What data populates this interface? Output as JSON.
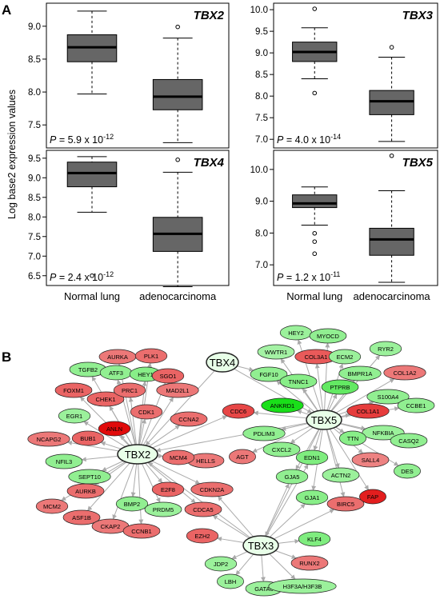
{
  "panel_letters": {
    "a": "A",
    "b": "B"
  },
  "ylabel": "Log base2 expression values",
  "xcategories": [
    "Normal lung",
    "adenocarcinoma"
  ],
  "colors": {
    "box": "#666666",
    "median": "#000000",
    "edge_red": "#e8000a",
    "edge_green": "#22dd22",
    "arrow": "#aaaaaa"
  },
  "chart_data": [
    {
      "type": "box",
      "title": "TBX2",
      "pvalue": "P = 5.9 x 10",
      "pexp": "-12",
      "ylim": [
        7.15,
        9.35
      ],
      "yticks": [
        "7.5",
        "8.0",
        "8.5",
        "9.0"
      ],
      "groups": [
        {
          "name": "Normal lung",
          "whisker_low": 7.97,
          "q1": 8.46,
          "median": 8.68,
          "q3": 8.87,
          "whisker_high": 9.23,
          "outliers": []
        },
        {
          "name": "adenocarcinoma",
          "whisker_low": 7.23,
          "q1": 7.73,
          "median": 7.93,
          "q3": 8.19,
          "whisker_high": 8.82,
          "outliers": [
            8.99
          ]
        }
      ]
    },
    {
      "type": "box",
      "title": "TBX3",
      "pvalue": "P = 4.0 x 10",
      "pexp": "-14",
      "ylim": [
        6.8,
        10.15
      ],
      "yticks": [
        "7.0",
        "7.5",
        "8.0",
        "8.5",
        "9.0",
        "9.5",
        "10.0"
      ],
      "groups": [
        {
          "name": "Normal lung",
          "whisker_low": 8.4,
          "q1": 8.8,
          "median": 9.02,
          "q3": 9.25,
          "whisker_high": 9.58,
          "outliers": [
            8.07,
            10.02
          ]
        },
        {
          "name": "adenocarcinoma",
          "whisker_low": 6.95,
          "q1": 7.57,
          "median": 7.88,
          "q3": 8.13,
          "whisker_high": 8.9,
          "outliers": [
            9.13
          ]
        }
      ]
    },
    {
      "type": "box",
      "title": "TBX4",
      "pvalue": "P = 2.4 x 10",
      "pexp": "-12",
      "ylim": [
        6.25,
        9.7
      ],
      "yticks": [
        "6.5",
        "7.0",
        "7.5",
        "8.0",
        "8.5",
        "9.0",
        "9.5"
      ],
      "groups": [
        {
          "name": "Normal lung",
          "whisker_low": 8.12,
          "q1": 8.77,
          "median": 9.12,
          "q3": 9.4,
          "whisker_high": 9.54,
          "outliers": [
            6.5
          ]
        },
        {
          "name": "adenocarcinoma",
          "whisker_low": 6.22,
          "q1": 7.12,
          "median": 7.57,
          "q3": 7.99,
          "whisker_high": 9.14,
          "outliers": [
            9.46
          ]
        }
      ]
    },
    {
      "type": "box",
      "title": "TBX5",
      "pvalue": "P = 1.2 x 10",
      "pexp": "-11",
      "ylim": [
        6.35,
        10.6
      ],
      "yticks": [
        "7.0",
        "8.0",
        "9.0",
        "10.0"
      ],
      "groups": [
        {
          "name": "Normal lung",
          "whisker_low": 8.25,
          "q1": 8.8,
          "median": 8.93,
          "q3": 9.2,
          "whisker_high": 9.45,
          "outliers": [
            7.35,
            7.73,
            7.99
          ]
        },
        {
          "name": "adenocarcinoma",
          "whisker_low": 6.45,
          "q1": 7.3,
          "median": 7.8,
          "q3": 8.15,
          "whisker_high": 9.33,
          "outliers": [
            10.43
          ]
        }
      ]
    }
  ],
  "network": {
    "hubs": [
      "TBX2",
      "TBX3",
      "TBX4",
      "TBX5"
    ],
    "nodes": [
      {
        "id": "TBX2",
        "level": 0.45
      },
      {
        "id": "TBX3",
        "level": 0.5
      },
      {
        "id": "TBX4",
        "level": 0.5
      },
      {
        "id": "TBX5",
        "level": 0.6
      },
      {
        "id": "AURKA",
        "level": -0.45
      },
      {
        "id": "PLK1",
        "level": -0.5
      },
      {
        "id": "TGFB2",
        "level": 0.35
      },
      {
        "id": "ATF3",
        "level": 0.35
      },
      {
        "id": "HEY1",
        "level": 0.4
      },
      {
        "id": "SGO1",
        "level": -0.55
      },
      {
        "id": "FOXM1",
        "level": -0.55
      },
      {
        "id": "CHEK1",
        "level": -0.55
      },
      {
        "id": "PRC1",
        "level": -0.5
      },
      {
        "id": "MAD2L1",
        "level": -0.45
      },
      {
        "id": "CDK1",
        "level": -0.5
      },
      {
        "id": "CCNA2",
        "level": -0.5
      },
      {
        "id": "EGR1",
        "level": 0.3
      },
      {
        "id": "ANLN",
        "level": -1.0
      },
      {
        "id": "NCAPG2",
        "level": -0.45
      },
      {
        "id": "BUB1",
        "level": -0.55
      },
      {
        "id": "NFIL3",
        "level": 0.35
      },
      {
        "id": "SEPT10",
        "level": 0.35
      },
      {
        "id": "AURKB",
        "level": -0.5
      },
      {
        "id": "MCM2",
        "level": -0.45
      },
      {
        "id": "ASF1B",
        "level": -0.5
      },
      {
        "id": "CKAP2",
        "level": -0.45
      },
      {
        "id": "BMP2",
        "level": 0.35
      },
      {
        "id": "CCNB1",
        "level": -0.5
      },
      {
        "id": "PRDM5",
        "level": 0.3
      },
      {
        "id": "E2F8",
        "level": -0.55
      },
      {
        "id": "CDCA5",
        "level": -0.5
      },
      {
        "id": "CDKN2A",
        "level": -0.5
      },
      {
        "id": "EZH2",
        "level": -0.55
      },
      {
        "id": "HELLS",
        "level": -0.45
      },
      {
        "id": "MCM4",
        "level": -0.5
      },
      {
        "id": "AGT",
        "level": -0.45
      },
      {
        "id": "CDC6",
        "level": -0.7
      },
      {
        "id": "FGF10",
        "level": 0.35
      },
      {
        "id": "PDLIM3",
        "level": 0.35
      },
      {
        "id": "HEY2",
        "level": 0.3
      },
      {
        "id": "MYOCD",
        "level": 0.35
      },
      {
        "id": "WWTR1",
        "level": 0.25
      },
      {
        "id": "COL3A1",
        "level": -0.6
      },
      {
        "id": "ECM2",
        "level": 0.3
      },
      {
        "id": "RYR2",
        "level": 0.3
      },
      {
        "id": "BMPR1A",
        "level": 0.35
      },
      {
        "id": "COL1A2",
        "level": -0.45
      },
      {
        "id": "TNNC1",
        "level": 0.4
      },
      {
        "id": "PTPRB",
        "level": 0.6
      },
      {
        "id": "S100A4",
        "level": 0.35
      },
      {
        "id": "ANKRD1",
        "level": 1.0
      },
      {
        "id": "COL1A1",
        "level": -0.75
      },
      {
        "id": "CCBE1",
        "level": 0.35
      },
      {
        "id": "NFKBIA",
        "level": 0.3
      },
      {
        "id": "TTN",
        "level": 0.4
      },
      {
        "id": "CASQ2",
        "level": 0.35
      },
      {
        "id": "CXCL2",
        "level": 0.35
      },
      {
        "id": "EDN1",
        "level": 0.45
      },
      {
        "id": "SALL4",
        "level": -0.4
      },
      {
        "id": "DES",
        "level": 0.35
      },
      {
        "id": "GJA5",
        "level": 0.35
      },
      {
        "id": "ACTN2",
        "level": 0.3
      },
      {
        "id": "GJA1",
        "level": 0.4
      },
      {
        "id": "BIRC5",
        "level": -0.5
      },
      {
        "id": "FAP",
        "level": -0.9
      },
      {
        "id": "KLF4",
        "level": 0.45
      },
      {
        "id": "RUNX2",
        "level": -0.45
      },
      {
        "id": "JDP2",
        "level": 0.3
      },
      {
        "id": "LBH",
        "level": 0.3
      },
      {
        "id": "GATA6",
        "level": 0.3
      },
      {
        "id": "H3F3A/H3F3B",
        "level": 0.3
      }
    ],
    "edges": [
      [
        "TBX2",
        "AURKA"
      ],
      [
        "TBX2",
        "PLK1"
      ],
      [
        "TBX2",
        "TGFB2"
      ],
      [
        "TBX2",
        "ATF3"
      ],
      [
        "TBX2",
        "HEY1"
      ],
      [
        "TBX2",
        "SGO1"
      ],
      [
        "TBX2",
        "FOXM1"
      ],
      [
        "TBX2",
        "CHEK1"
      ],
      [
        "TBX2",
        "PRC1"
      ],
      [
        "TBX2",
        "MAD2L1"
      ],
      [
        "TBX2",
        "CDK1"
      ],
      [
        "TBX2",
        "CCNA2"
      ],
      [
        "TBX2",
        "EGR1"
      ],
      [
        "TBX2",
        "ANLN"
      ],
      [
        "TBX2",
        "NCAPG2"
      ],
      [
        "TBX2",
        "BUB1"
      ],
      [
        "TBX2",
        "NFIL3"
      ],
      [
        "TBX2",
        "SEPT10"
      ],
      [
        "TBX2",
        "AURKB"
      ],
      [
        "TBX2",
        "MCM2"
      ],
      [
        "TBX2",
        "ASF1B"
      ],
      [
        "TBX2",
        "CKAP2"
      ],
      [
        "TBX2",
        "BMP2"
      ],
      [
        "TBX2",
        "CCNB1"
      ],
      [
        "TBX2",
        "PRDM5"
      ],
      [
        "TBX2",
        "E2F8"
      ],
      [
        "TBX2",
        "CDCA5"
      ],
      [
        "TBX2",
        "CDKN2A"
      ],
      [
        "TBX2",
        "HELLS"
      ],
      [
        "TBX2",
        "MCM4"
      ],
      [
        "TBX2",
        "CDC6"
      ],
      [
        "TBX4",
        "TBX2"
      ],
      [
        "TBX4",
        "FGF10"
      ],
      [
        "TBX4",
        "TBX5"
      ],
      [
        "TBX5",
        "TBX2"
      ],
      [
        "TBX5",
        "HEY2"
      ],
      [
        "TBX5",
        "MYOCD"
      ],
      [
        "TBX5",
        "WWTR1"
      ],
      [
        "TBX5",
        "COL3A1"
      ],
      [
        "TBX5",
        "ECM2"
      ],
      [
        "TBX5",
        "RYR2"
      ],
      [
        "TBX5",
        "BMPR1A"
      ],
      [
        "TBX5",
        "COL1A2"
      ],
      [
        "TBX5",
        "TNNC1"
      ],
      [
        "TBX5",
        "PTPRB"
      ],
      [
        "TBX5",
        "S100A4"
      ],
      [
        "TBX5",
        "ANKRD1"
      ],
      [
        "TBX5",
        "COL1A1"
      ],
      [
        "TBX5",
        "CCBE1"
      ],
      [
        "TBX5",
        "NFKBIA"
      ],
      [
        "TBX5",
        "TTN"
      ],
      [
        "TBX5",
        "CASQ2"
      ],
      [
        "TBX5",
        "CXCL2"
      ],
      [
        "TBX5",
        "EDN1"
      ],
      [
        "TBX5",
        "SALL4"
      ],
      [
        "TBX5",
        "DES"
      ],
      [
        "TBX5",
        "GJA5"
      ],
      [
        "TBX5",
        "ACTN2"
      ],
      [
        "TBX5",
        "GJA1"
      ],
      [
        "TBX5",
        "BIRC5"
      ],
      [
        "TBX5",
        "FAP"
      ],
      [
        "TBX5",
        "PDLIM3"
      ],
      [
        "TBX5",
        "CDC6"
      ],
      [
        "TBX5",
        "AGT"
      ],
      [
        "TBX5",
        "FGF10"
      ],
      [
        "TBX5",
        "TBX3"
      ],
      [
        "TBX3",
        "TBX2"
      ],
      [
        "TBX3",
        "CDKN2A"
      ],
      [
        "TBX3",
        "CDCA5"
      ],
      [
        "TBX3",
        "EZH2"
      ],
      [
        "TBX3",
        "KLF4"
      ],
      [
        "TBX3",
        "RUNX2"
      ],
      [
        "TBX3",
        "JDP2"
      ],
      [
        "TBX3",
        "LBH"
      ],
      [
        "TBX3",
        "GATA6"
      ],
      [
        "TBX3",
        "H3F3A/H3F3B"
      ],
      [
        "TBX3",
        "GJA1"
      ],
      [
        "TBX3",
        "EDN1"
      ],
      [
        "TBX3",
        "GJA5"
      ],
      [
        "TBX3",
        "BIRC5"
      ]
    ]
  }
}
